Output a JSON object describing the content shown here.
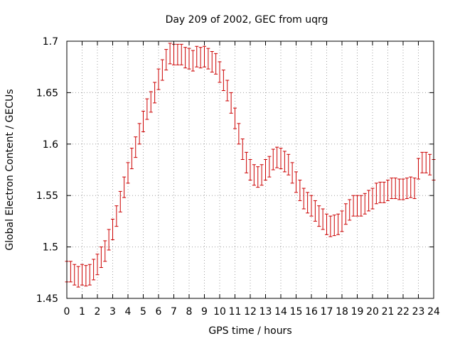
{
  "chart_data": {
    "type": "scatter",
    "title": "Day 209 of 2002, GEC from uqrg",
    "xlabel": "GPS time / hours",
    "ylabel": "Global Electron Content / GECUs",
    "xlim": [
      0,
      24
    ],
    "ylim": [
      1.45,
      1.7
    ],
    "grid": true,
    "x_ticks": [
      "0",
      "1",
      "2",
      "3",
      "4",
      "5",
      "6",
      "7",
      "8",
      "9",
      "10",
      "11",
      "12",
      "13",
      "14",
      "15",
      "16",
      "17",
      "18",
      "19",
      "20",
      "21",
      "22",
      "23",
      "24"
    ],
    "y_ticks": [
      "1.45",
      "1.5",
      "1.55",
      "1.6",
      "1.65",
      "1.7"
    ],
    "series_color": "#cc0000",
    "series": [
      {
        "name": "GEC",
        "error": 0.01,
        "x": [
          0.0,
          0.25,
          0.5,
          0.75,
          1.0,
          1.25,
          1.5,
          1.75,
          2.0,
          2.25,
          2.5,
          2.75,
          3.0,
          3.25,
          3.5,
          3.75,
          4.0,
          4.25,
          4.5,
          4.75,
          5.0,
          5.25,
          5.5,
          5.75,
          6.0,
          6.25,
          6.5,
          6.75,
          7.0,
          7.25,
          7.5,
          7.75,
          8.0,
          8.25,
          8.5,
          8.75,
          9.0,
          9.25,
          9.5,
          9.75,
          10.0,
          10.25,
          10.5,
          10.75,
          11.0,
          11.25,
          11.5,
          11.75,
          12.0,
          12.25,
          12.5,
          12.75,
          13.0,
          13.25,
          13.5,
          13.75,
          14.0,
          14.25,
          14.5,
          14.75,
          15.0,
          15.25,
          15.5,
          15.75,
          16.0,
          16.25,
          16.5,
          16.75,
          17.0,
          17.25,
          17.5,
          17.75,
          18.0,
          18.25,
          18.5,
          18.75,
          19.0,
          19.25,
          19.5,
          19.75,
          20.0,
          20.25,
          20.5,
          20.75,
          21.0,
          21.25,
          21.5,
          21.75,
          22.0,
          22.25,
          22.5,
          22.75,
          23.0,
          23.25,
          23.5,
          23.75,
          24.0
        ],
        "y": [
          1.476,
          1.476,
          1.473,
          1.471,
          1.473,
          1.472,
          1.473,
          1.478,
          1.483,
          1.49,
          1.496,
          1.507,
          1.517,
          1.53,
          1.544,
          1.558,
          1.572,
          1.586,
          1.597,
          1.61,
          1.622,
          1.634,
          1.641,
          1.65,
          1.663,
          1.672,
          1.682,
          1.688,
          1.687,
          1.687,
          1.687,
          1.684,
          1.683,
          1.681,
          1.685,
          1.684,
          1.685,
          1.683,
          1.68,
          1.678,
          1.67,
          1.662,
          1.652,
          1.64,
          1.625,
          1.61,
          1.595,
          1.582,
          1.575,
          1.57,
          1.568,
          1.57,
          1.575,
          1.578,
          1.585,
          1.587,
          1.586,
          1.583,
          1.58,
          1.572,
          1.563,
          1.555,
          1.547,
          1.543,
          1.54,
          1.535,
          1.53,
          1.527,
          1.522,
          1.52,
          1.521,
          1.522,
          1.525,
          1.532,
          1.536,
          1.54,
          1.54,
          1.54,
          1.542,
          1.545,
          1.547,
          1.552,
          1.553,
          1.553,
          1.555,
          1.557,
          1.557,
          1.556,
          1.556,
          1.557,
          1.558,
          1.557,
          1.576,
          1.582,
          1.582,
          1.58,
          1.575
        ]
      }
    ]
  }
}
